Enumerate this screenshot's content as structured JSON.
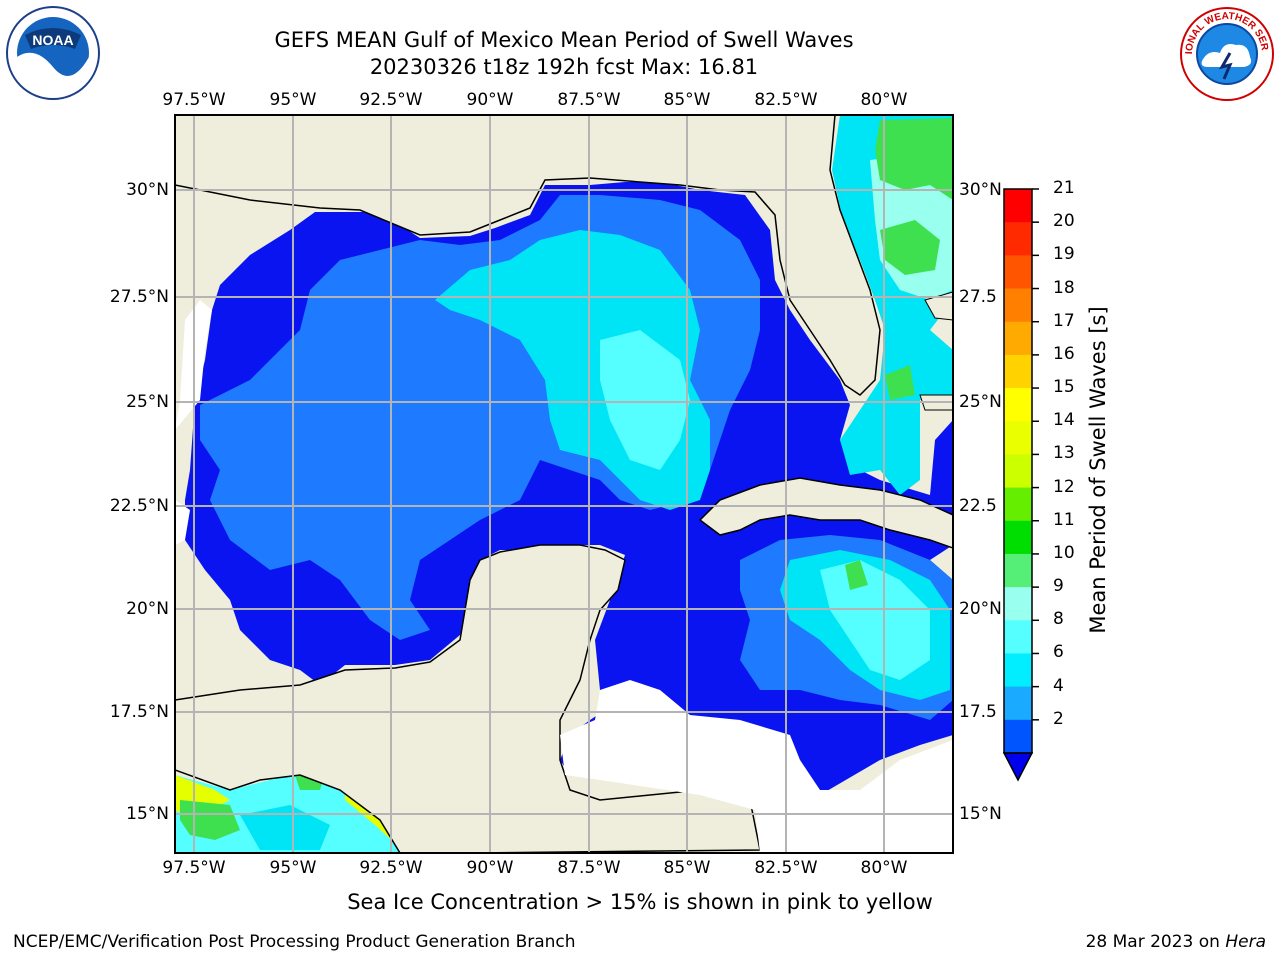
{
  "title_line1": "GEFS MEAN Gulf of Mexico Mean Period of Swell Waves",
  "title_line2": "20230326 t18z 192h fcst   Max: 16.81",
  "lon_labels": [
    "97.5°W",
    "95°W",
    "92.5°W",
    "90°W",
    "87.5°W",
    "85°W",
    "82.5°W",
    "80°W"
  ],
  "lat_labels_left": [
    "30°N",
    "27.5°N",
    "25°N",
    "22.5°N",
    "20°N",
    "17.5°N",
    "15°N"
  ],
  "lat_labels_right": [
    "30°N",
    "27.5",
    "25°N",
    "22.5",
    "20°N",
    "17.5",
    "15°N"
  ],
  "colorbar": {
    "title": "Mean Period of Swell Waves [s]",
    "ticks": [
      "21",
      "20",
      "19",
      "18",
      "17",
      "16",
      "15",
      "14",
      "13",
      "12",
      "11",
      "10",
      "9",
      "8",
      "6",
      "4",
      "2"
    ],
    "colors": [
      "#ff0000",
      "#ff2a00",
      "#ff5500",
      "#ff8000",
      "#ffaa00",
      "#ffd200",
      "#ffff00",
      "#eaff00",
      "#ccff00",
      "#66ee00",
      "#00dd00",
      "#55ee77",
      "#99ffee",
      "#55ffff",
      "#00eeff",
      "#1aaaff",
      "#0055ff"
    ],
    "under_color": "#0000ee"
  },
  "colors": {
    "land": "#efeedc",
    "ocean_deep": "#0a14f0",
    "ocean_blue": "#1e7bff",
    "ocean_cyan": "#00e5f5",
    "ocean_lightcyan": "#55ffff",
    "ocean_green": "#3fe050",
    "grid": "#b4b4b4"
  },
  "note": "Sea Ice Concentration > 15% is shown in pink to yellow",
  "footer_left": "NCEP/EMC/Verification Post Processing Product Generation Branch",
  "footer_right_prefix": "28 Mar 2023 on ",
  "footer_right_host": "Hera",
  "logo_left": "NOAA",
  "logo_right": "NATIONAL WEATHER SERVICE"
}
